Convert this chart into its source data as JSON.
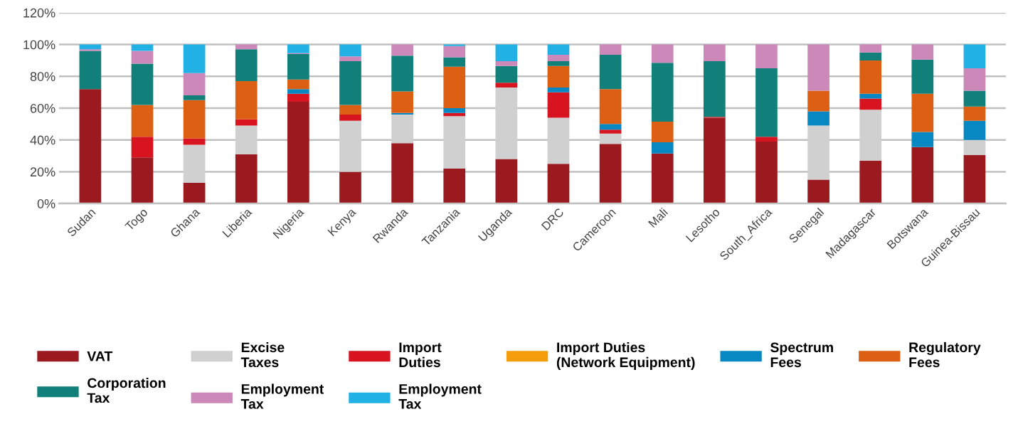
{
  "chart_data": {
    "type": "bar",
    "stacked": true,
    "categories": [
      "Sudan",
      "Togo",
      "Ghana",
      "Liberia",
      "Nigeria",
      "Kenya",
      "Rwanda",
      "Tanzania",
      "Uganda",
      "DRC",
      "Cameroon",
      "Mali",
      "Lesotho",
      "South_Africa",
      "Senegal",
      "Madagascar",
      "Botswana",
      "Guinea-Bissau"
    ],
    "series": [
      {
        "name": "VAT",
        "color": "#9a1a1f",
        "values": [
          72,
          29,
          13,
          31,
          64,
          20,
          38,
          22,
          28,
          25,
          37.5,
          31.5,
          54,
          39,
          15,
          27,
          35.5,
          30.5
        ]
      },
      {
        "name": "Excise Taxes",
        "color": "#cfd0cf",
        "values": [
          0,
          0,
          24,
          18,
          0,
          32,
          18,
          33,
          45,
          29,
          6.5,
          0,
          0,
          0,
          34,
          32,
          0,
          9.5
        ]
      },
      {
        "name": "Import Duties",
        "color": "#d7141f",
        "values": [
          0,
          13,
          4,
          4,
          5,
          4,
          0,
          2,
          3,
          16,
          2.5,
          0,
          0.5,
          3,
          0,
          7,
          0,
          0
        ]
      },
      {
        "name": "Import Duties (Network Equipment)",
        "color": "#f39c0c",
        "values": [
          0,
          0,
          0,
          0,
          0,
          0,
          0,
          0,
          0,
          0,
          0,
          0,
          0,
          0,
          0,
          0,
          0,
          0
        ]
      },
      {
        "name": "Spectrum Fees",
        "color": "#0788c3",
        "values": [
          0,
          0,
          0,
          0,
          3,
          0,
          1,
          3,
          0,
          3,
          3.5,
          7,
          0,
          0,
          9,
          3,
          9.5,
          12
        ]
      },
      {
        "name": "Regulatory Fees",
        "color": "#dc5f13",
        "values": [
          0,
          20,
          24,
          24,
          6,
          6,
          13.5,
          26,
          0,
          13.5,
          22,
          13,
          0,
          0,
          13,
          21,
          24,
          9
        ]
      },
      {
        "name": "Corporation Tax",
        "color": "#12807a",
        "values": [
          24,
          26,
          3,
          20,
          16,
          27.5,
          22.5,
          6,
          10.5,
          3,
          21.5,
          37,
          35,
          43,
          0,
          5,
          21.5,
          10
        ]
      },
      {
        "name": "Employment Tax",
        "color": "#cb88b9",
        "values": [
          1,
          8,
          14,
          3,
          0.5,
          3,
          7,
          7,
          3,
          4,
          6.5,
          11.5,
          10.5,
          15,
          29,
          5,
          9.5,
          14
        ]
      },
      {
        "name": "Employment Tax",
        "color": "#22b1e5",
        "values": [
          3,
          4,
          18,
          0,
          5.5,
          7.5,
          0,
          1,
          10.5,
          6.5,
          0,
          0,
          0,
          0,
          0,
          0,
          0,
          15
        ]
      }
    ],
    "ylim": [
      0,
      120
    ],
    "yticks": [
      {
        "value": 0,
        "label": "0%"
      },
      {
        "value": 20,
        "label": "20%"
      },
      {
        "value": 40,
        "label": "40%"
      },
      {
        "value": 60,
        "label": "60%"
      },
      {
        "value": 80,
        "label": "80%"
      },
      {
        "value": 100,
        "label": "100%"
      },
      {
        "value": 120,
        "label": "120%"
      }
    ],
    "grid": "y",
    "legend": "bottom"
  }
}
